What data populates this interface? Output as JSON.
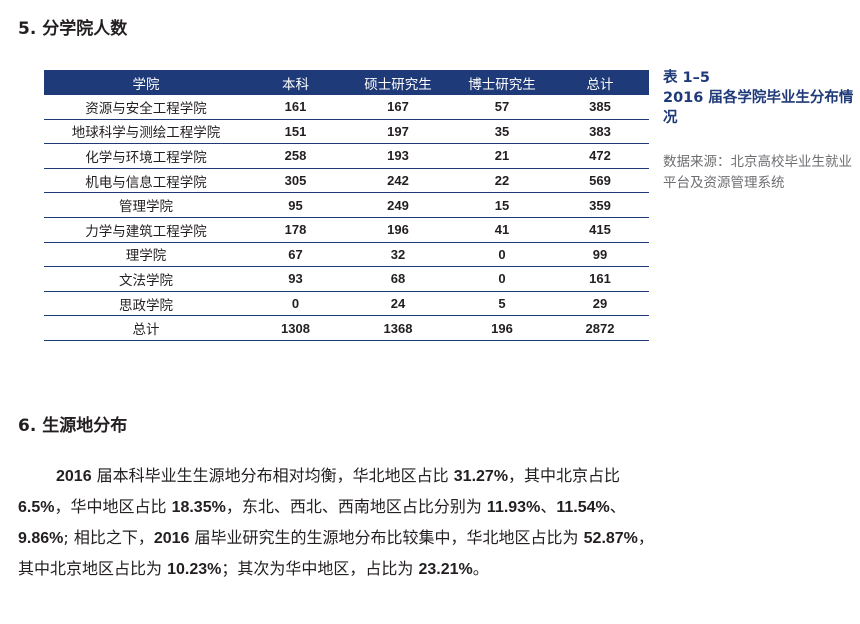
{
  "section5": {
    "heading": "5. 分学院人数"
  },
  "table": {
    "headers": [
      "学院",
      "本科",
      "硕士研究生",
      "博士研究生",
      "总计"
    ],
    "rows": [
      [
        "资源与安全工程学院",
        "161",
        "167",
        "57",
        "385"
      ],
      [
        "地球科学与测绘工程学院",
        "151",
        "197",
        "35",
        "383"
      ],
      [
        "化学与环境工程学院",
        "258",
        "193",
        "21",
        "472"
      ],
      [
        "机电与信息工程学院",
        "305",
        "242",
        "22",
        "569"
      ],
      [
        "管理学院",
        "95",
        "249",
        "15",
        "359"
      ],
      [
        "力学与建筑工程学院",
        "178",
        "196",
        "41",
        "415"
      ],
      [
        "理学院",
        "67",
        "32",
        "0",
        "99"
      ],
      [
        "文法学院",
        "93",
        "68",
        "0",
        "161"
      ],
      [
        "思政学院",
        "0",
        "24",
        "5",
        "29"
      ],
      [
        "总计",
        "1308",
        "1368",
        "196",
        "2872"
      ]
    ]
  },
  "caption": {
    "label": "表 1–5",
    "title": "2016 届各学院毕业生分布情况",
    "source": "数据来源：北京高校毕业生就业平台及资源管理系统"
  },
  "section6": {
    "heading": "6. 生源地分布",
    "paragraph": [
      {
        "t": "2016",
        "b": true
      },
      {
        "t": " 届本科毕业生生源地分布相对均衡，华北地区占比 ",
        "b": false
      },
      {
        "t": "31.27%",
        "b": true
      },
      {
        "t": "，其中北京占比 ",
        "b": false
      },
      {
        "t": "6.5%",
        "b": true
      },
      {
        "t": "，华中地区占比 ",
        "b": false
      },
      {
        "t": "18.35%",
        "b": true
      },
      {
        "t": "，东北、西北、西南地区占比分别为 ",
        "b": false
      },
      {
        "t": "11.93%",
        "b": true
      },
      {
        "t": "、",
        "b": false
      },
      {
        "t": "11.54%",
        "b": true
      },
      {
        "t": "、",
        "b": false
      },
      {
        "t": "9.86%",
        "b": true
      },
      {
        "t": "; 相比之下，",
        "b": false
      },
      {
        "t": "2016",
        "b": true
      },
      {
        "t": " 届毕业研究生的生源地分布比较集中，华北地区占比为 ",
        "b": false
      },
      {
        "t": "52.87%",
        "b": true
      },
      {
        "t": "，其中北京地区占比为 ",
        "b": false
      },
      {
        "t": "10.23%",
        "b": true
      },
      {
        "t": "；其次为华中地区，占比为 ",
        "b": false
      },
      {
        "t": "23.21%",
        "b": true
      },
      {
        "t": "。",
        "b": false
      }
    ]
  },
  "colors": {
    "table_header": "#1f3a78",
    "caption": "#1f3a78",
    "source_text": "#6d6e71"
  }
}
